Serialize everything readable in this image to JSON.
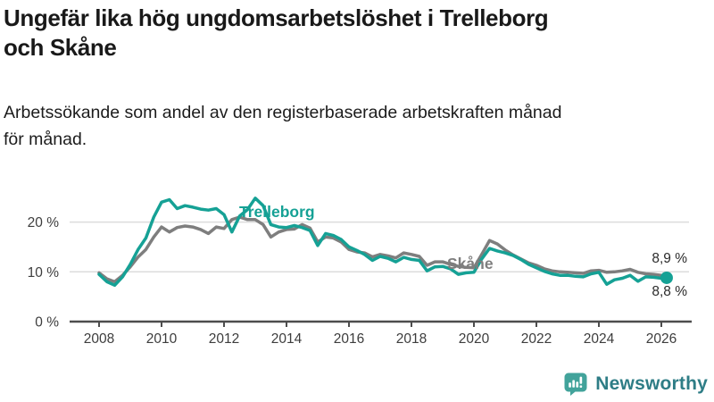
{
  "header": {
    "title_line1": "Ungefär lika hög ungdomsarbetslöshet i Trelleborg",
    "title_line2": "och Skåne",
    "subtitle_line1": "Arbetssökande som andel av den registerbaserade arbetskraften månad",
    "subtitle_line2": "för månad."
  },
  "footer": {
    "brand": "Newsworthy"
  },
  "colors": {
    "trelleborg": "#15a195",
    "skane": "#7e7e7e",
    "grid": "#dcdcdc",
    "axis": "#4d4d4d",
    "tick_text": "#3d3d3d",
    "logo_icon": "#42a39b",
    "logo_text": "#2e7d86"
  },
  "chart_data": {
    "type": "line",
    "title": "Ungefär lika hög ungdomsarbetslöshet i Trelleborg och Skåne",
    "subtitle": "Arbetssökande som andel av den registerbaserade arbetskraften månad för månad.",
    "xlabel": "",
    "ylabel": "",
    "x_unit": "year (monthly observations, values in percent)",
    "xlim": [
      2007.2,
      2026.9
    ],
    "ylim": [
      0,
      28
    ],
    "grid": "horizontal",
    "legend_position": "inline-labels",
    "xticks": [
      2008,
      2010,
      2012,
      2014,
      2016,
      2018,
      2020,
      2022,
      2024,
      2026
    ],
    "yticks": [
      {
        "value": 0,
        "label": "0 %"
      },
      {
        "value": 10,
        "label": "10 %"
      },
      {
        "value": 20,
        "label": "20 %"
      }
    ],
    "end_labels": {
      "skane": "8,9 %",
      "trelleborg": "8,8 %"
    },
    "series": [
      {
        "name": "Skåne",
        "color": "#7e7e7e",
        "end_value": 8.9,
        "end_dot": false,
        "points": [
          [
            2008.0,
            9.8
          ],
          [
            2008.25,
            8.6
          ],
          [
            2008.5,
            8.0
          ],
          [
            2008.75,
            9.3
          ],
          [
            2009.0,
            11.0
          ],
          [
            2009.25,
            13.0
          ],
          [
            2009.5,
            14.5
          ],
          [
            2009.75,
            17.0
          ],
          [
            2010.0,
            19.0
          ],
          [
            2010.25,
            18.0
          ],
          [
            2010.5,
            18.9
          ],
          [
            2010.75,
            19.2
          ],
          [
            2011.0,
            19.0
          ],
          [
            2011.25,
            18.5
          ],
          [
            2011.5,
            17.7
          ],
          [
            2011.75,
            19.0
          ],
          [
            2012.0,
            18.7
          ],
          [
            2012.25,
            20.5
          ],
          [
            2012.5,
            21.0
          ],
          [
            2012.75,
            20.5
          ],
          [
            2013.0,
            20.5
          ],
          [
            2013.25,
            19.5
          ],
          [
            2013.5,
            17.0
          ],
          [
            2013.75,
            18.0
          ],
          [
            2014.0,
            18.5
          ],
          [
            2014.25,
            18.6
          ],
          [
            2014.5,
            19.5
          ],
          [
            2014.75,
            18.8
          ],
          [
            2015.0,
            16.0
          ],
          [
            2015.25,
            17.0
          ],
          [
            2015.5,
            16.8
          ],
          [
            2015.75,
            16.0
          ],
          [
            2016.0,
            14.5
          ],
          [
            2016.25,
            14.0
          ],
          [
            2016.5,
            13.8
          ],
          [
            2016.75,
            13.0
          ],
          [
            2017.0,
            13.5
          ],
          [
            2017.25,
            13.2
          ],
          [
            2017.5,
            12.8
          ],
          [
            2017.75,
            13.8
          ],
          [
            2018.0,
            13.5
          ],
          [
            2018.25,
            13.1
          ],
          [
            2018.5,
            11.3
          ],
          [
            2018.75,
            12.0
          ],
          [
            2019.0,
            12.0
          ],
          [
            2019.25,
            11.5
          ],
          [
            2019.5,
            11.1
          ],
          [
            2019.75,
            10.9
          ],
          [
            2020.0,
            10.8
          ],
          [
            2020.25,
            13.5
          ],
          [
            2020.5,
            16.3
          ],
          [
            2020.75,
            15.6
          ],
          [
            2021.0,
            14.4
          ],
          [
            2021.25,
            13.4
          ],
          [
            2021.5,
            12.6
          ],
          [
            2021.75,
            11.8
          ],
          [
            2022.0,
            11.3
          ],
          [
            2022.25,
            10.6
          ],
          [
            2022.5,
            10.2
          ],
          [
            2022.75,
            10.0
          ],
          [
            2023.0,
            9.9
          ],
          [
            2023.25,
            9.8
          ],
          [
            2023.5,
            9.7
          ],
          [
            2023.75,
            10.2
          ],
          [
            2024.0,
            10.3
          ],
          [
            2024.25,
            9.9
          ],
          [
            2024.5,
            10.0
          ],
          [
            2024.75,
            10.2
          ],
          [
            2025.0,
            10.5
          ],
          [
            2025.25,
            9.9
          ],
          [
            2025.5,
            9.6
          ],
          [
            2025.75,
            9.5
          ],
          [
            2026.0,
            9.3
          ],
          [
            2026.17,
            8.9
          ]
        ]
      },
      {
        "name": "Trelleborg",
        "color": "#15a195",
        "end_value": 8.8,
        "end_dot": true,
        "points": [
          [
            2008.0,
            9.5
          ],
          [
            2008.25,
            8.0
          ],
          [
            2008.5,
            7.3
          ],
          [
            2008.75,
            9.0
          ],
          [
            2009.0,
            11.5
          ],
          [
            2009.25,
            14.5
          ],
          [
            2009.5,
            16.8
          ],
          [
            2009.75,
            21.0
          ],
          [
            2010.0,
            24.0
          ],
          [
            2010.25,
            24.5
          ],
          [
            2010.5,
            22.7
          ],
          [
            2010.75,
            23.3
          ],
          [
            2011.0,
            23.0
          ],
          [
            2011.25,
            22.6
          ],
          [
            2011.5,
            22.4
          ],
          [
            2011.75,
            22.7
          ],
          [
            2012.0,
            21.5
          ],
          [
            2012.25,
            18.0
          ],
          [
            2012.5,
            21.2
          ],
          [
            2012.75,
            22.5
          ],
          [
            2013.0,
            24.8
          ],
          [
            2013.25,
            23.3
          ],
          [
            2013.5,
            19.5
          ],
          [
            2013.75,
            19.0
          ],
          [
            2014.0,
            18.9
          ],
          [
            2014.25,
            19.3
          ],
          [
            2014.5,
            18.9
          ],
          [
            2014.75,
            18.3
          ],
          [
            2015.0,
            15.3
          ],
          [
            2015.25,
            17.7
          ],
          [
            2015.5,
            17.3
          ],
          [
            2015.75,
            16.5
          ],
          [
            2016.0,
            15.0
          ],
          [
            2016.25,
            14.3
          ],
          [
            2016.5,
            13.5
          ],
          [
            2016.75,
            12.3
          ],
          [
            2017.0,
            13.1
          ],
          [
            2017.25,
            12.7
          ],
          [
            2017.5,
            12.0
          ],
          [
            2017.75,
            12.9
          ],
          [
            2018.0,
            12.5
          ],
          [
            2018.25,
            12.3
          ],
          [
            2018.5,
            10.2
          ],
          [
            2018.75,
            11.0
          ],
          [
            2019.0,
            11.1
          ],
          [
            2019.25,
            10.6
          ],
          [
            2019.5,
            9.5
          ],
          [
            2019.75,
            9.8
          ],
          [
            2020.0,
            9.9
          ],
          [
            2020.25,
            12.6
          ],
          [
            2020.5,
            14.7
          ],
          [
            2020.75,
            14.2
          ],
          [
            2021.0,
            13.8
          ],
          [
            2021.25,
            13.3
          ],
          [
            2021.5,
            12.5
          ],
          [
            2021.75,
            11.5
          ],
          [
            2022.0,
            10.8
          ],
          [
            2022.25,
            10.1
          ],
          [
            2022.5,
            9.6
          ],
          [
            2022.75,
            9.3
          ],
          [
            2023.0,
            9.3
          ],
          [
            2023.25,
            9.1
          ],
          [
            2023.5,
            9.0
          ],
          [
            2023.75,
            9.6
          ],
          [
            2024.0,
            9.9
          ],
          [
            2024.25,
            7.5
          ],
          [
            2024.5,
            8.4
          ],
          [
            2024.75,
            8.7
          ],
          [
            2025.0,
            9.3
          ],
          [
            2025.25,
            8.1
          ],
          [
            2025.5,
            9.0
          ],
          [
            2025.75,
            8.9
          ],
          [
            2026.0,
            8.7
          ],
          [
            2026.17,
            8.8
          ]
        ]
      }
    ]
  }
}
